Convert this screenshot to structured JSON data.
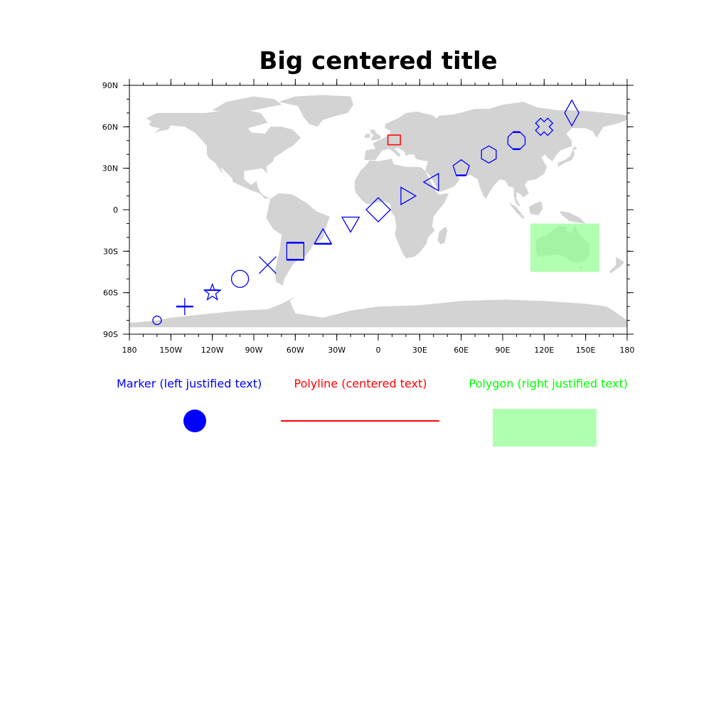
{
  "title": "Big centered title",
  "map": {
    "land_color": "#d3d3d3",
    "lon_ticks": [
      "180",
      "150W",
      "120W",
      "90W",
      "60W",
      "30W",
      "0",
      "30E",
      "60E",
      "90E",
      "120E",
      "150E",
      "180"
    ],
    "lat_ticks": [
      "90N",
      "60N",
      "30N",
      "0",
      "30S",
      "60S",
      "90S"
    ],
    "lon_range": [
      -180,
      180
    ],
    "lat_range": [
      -90,
      90
    ]
  },
  "markers": {
    "color": "#0000ff",
    "points": [
      {
        "lon": -160,
        "lat": -80,
        "shape": "circle-small"
      },
      {
        "lon": -140,
        "lat": -70,
        "shape": "plus"
      },
      {
        "lon": -120,
        "lat": -60,
        "shape": "star"
      },
      {
        "lon": -100,
        "lat": -50,
        "shape": "circle"
      },
      {
        "lon": -80,
        "lat": -40,
        "shape": "x"
      },
      {
        "lon": -60,
        "lat": -30,
        "shape": "square"
      },
      {
        "lon": -40,
        "lat": -20,
        "shape": "triangle-up"
      },
      {
        "lon": -20,
        "lat": -10,
        "shape": "triangle-down"
      },
      {
        "lon": 0,
        "lat": 0,
        "shape": "diamond"
      },
      {
        "lon": 20,
        "lat": 10,
        "shape": "triangle-right"
      },
      {
        "lon": 40,
        "lat": 20,
        "shape": "triangle-left"
      },
      {
        "lon": 60,
        "lat": 30,
        "shape": "pentagon"
      },
      {
        "lon": 80,
        "lat": 40,
        "shape": "hexagon"
      },
      {
        "lon": 100,
        "lat": 50,
        "shape": "octagon"
      },
      {
        "lon": 120,
        "lat": 60,
        "shape": "cross"
      },
      {
        "lon": 140,
        "lat": 70,
        "shape": "thin-diamond"
      }
    ]
  },
  "polyline_box": {
    "color": "#ff0000",
    "lon_min": 7,
    "lon_max": 16,
    "lat_min": 47,
    "lat_max": 54
  },
  "polygon_box": {
    "color": "#90ff90",
    "opacity": 0.7,
    "lon_min": 110,
    "lon_max": 160,
    "lat_min": -45,
    "lat_max": -10
  },
  "legend": {
    "marker_label": "Marker (left justified text)",
    "marker_color": "#0000ff",
    "polyline_label": "Polyline (centered text)",
    "polyline_color": "#ff0000",
    "polygon_label": "Polygon (right justified text)",
    "polygon_color": "#00ff00",
    "polygon_fill": "#b0ffb0"
  }
}
